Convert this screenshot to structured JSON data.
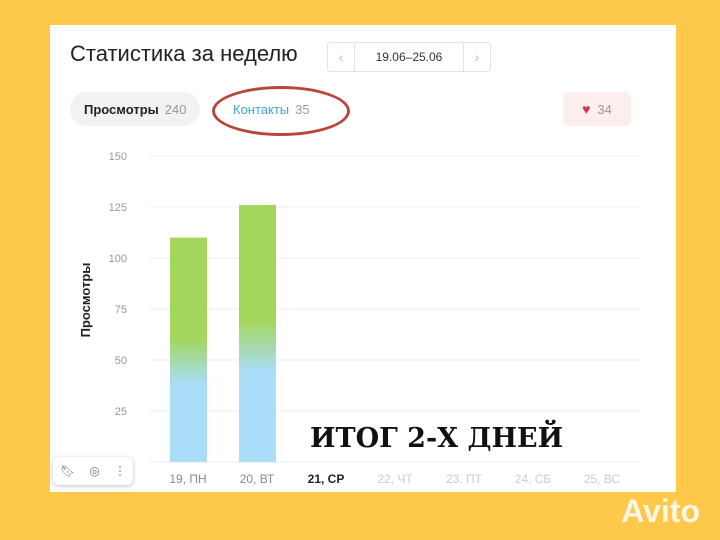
{
  "header": {
    "title": "Статистика за неделю",
    "date_range": "19.06–25.06",
    "prev": "‹",
    "next": "›"
  },
  "tabs": [
    {
      "label": "Просмотры",
      "count": "240"
    },
    {
      "label": "Контакты",
      "count": "35"
    }
  ],
  "favorites": {
    "icon": "heart-icon",
    "count": "34"
  },
  "overlay_text": "ИТОГ 2-Х ДНЕЙ",
  "watermark": "Avito",
  "colors": {
    "background": "#FEC84B",
    "bar_top": "#A4D65E",
    "bar_bottom": "#A9DDF8",
    "annotation": "#B8453B"
  },
  "chart_data": {
    "type": "bar",
    "ylabel": "Просмотры",
    "ylim": [
      0,
      150
    ],
    "yticks": [
      25,
      50,
      75,
      100,
      125,
      150
    ],
    "grid": true,
    "categories": [
      "19, ПН",
      "20, ВТ",
      "21, СР",
      "22, ЧТ",
      "23, ПТ",
      "24, СБ",
      "25, ВС"
    ],
    "highlighted_category": "21, СР",
    "values": [
      110,
      126,
      null,
      null,
      null,
      null,
      null
    ]
  }
}
